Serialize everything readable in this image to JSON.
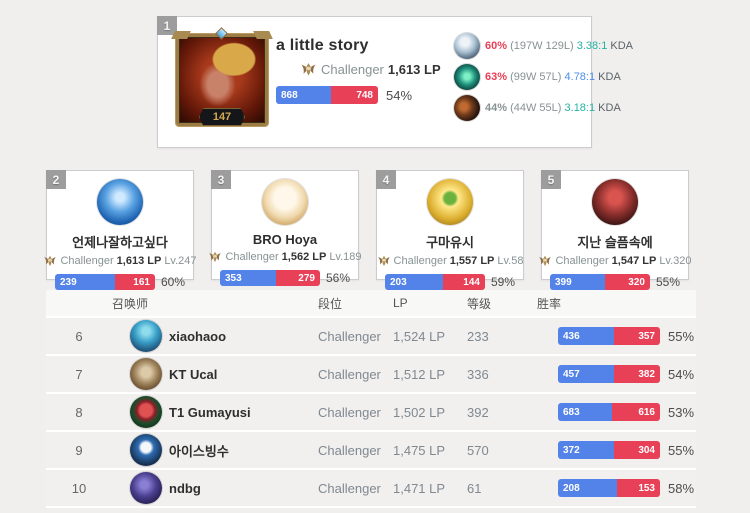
{
  "colors": {
    "win_blue": "#5383e8",
    "loss_red": "#e84057",
    "rate_red": "#e84057",
    "rate_gray": "#879292",
    "kda_teal": "#23b3a2",
    "kda_blue": "#4f8ee8"
  },
  "top_player": {
    "rank": "1",
    "name": "a little story",
    "tier": "Challenger",
    "lp": "1,613 LP",
    "level": "147",
    "wins": "868",
    "losses": "748",
    "win_pct": 53.7,
    "win_rate": "54%",
    "champions": [
      {
        "icon": "pale-champion-icon",
        "rate": "60%",
        "rate_color": "#e84057",
        "record": "(197W 129L)",
        "kda": "3.38:1",
        "kda_color": "#23b3a2",
        "kda_label": "KDA"
      },
      {
        "icon": "green-champion-icon",
        "rate": "63%",
        "rate_color": "#e84057",
        "record": "(99W 57L)",
        "kda": "4.78:1",
        "kda_color": "#4f8ee8",
        "kda_label": "KDA"
      },
      {
        "icon": "dark-champion-icon",
        "rate": "44%",
        "rate_color": "#879292",
        "record": "(44W 55L)",
        "kda": "3.18:1",
        "kda_color": "#23b3a2",
        "kda_label": "KDA"
      }
    ]
  },
  "cards": [
    {
      "rank": "2",
      "name": "언제나잘하고싶다",
      "tier": "Challenger",
      "lp": "1,613 LP",
      "level": "Lv.247",
      "wins": "239",
      "losses": "161",
      "win_pct": 59.8,
      "win_rate": "60%"
    },
    {
      "rank": "3",
      "name": "BRO Hoya",
      "tier": "Challenger",
      "lp": "1,562 LP",
      "level": "Lv.189",
      "wins": "353",
      "losses": "279",
      "win_pct": 55.9,
      "win_rate": "56%"
    },
    {
      "rank": "4",
      "name": "구마유시",
      "tier": "Challenger",
      "lp": "1,557 LP",
      "level": "Lv.58",
      "wins": "203",
      "losses": "144",
      "win_pct": 58.5,
      "win_rate": "59%"
    },
    {
      "rank": "5",
      "name": "지난 슬픔속에",
      "tier": "Challenger",
      "lp": "1,547 LP",
      "level": "Lv.320",
      "wins": "399",
      "losses": "320",
      "win_pct": 55.5,
      "win_rate": "55%"
    }
  ],
  "table": {
    "headers": {
      "summoner": "召唤师",
      "tier": "段位",
      "lp": "LP",
      "level": "等级",
      "win_rate": "胜率"
    },
    "rows": [
      {
        "rank": "6",
        "name": "xiaohaoo",
        "tier": "Challenger",
        "lp": "1,524 LP",
        "level": "233",
        "wins": "436",
        "losses": "357",
        "win_pct": 55.0,
        "win_rate": "55%"
      },
      {
        "rank": "7",
        "name": "KT Ucal",
        "tier": "Challenger",
        "lp": "1,512 LP",
        "level": "336",
        "wins": "457",
        "losses": "382",
        "win_pct": 54.5,
        "win_rate": "54%"
      },
      {
        "rank": "8",
        "name": "T1 Gumayusi",
        "tier": "Challenger",
        "lp": "1,502 LP",
        "level": "392",
        "wins": "683",
        "losses": "616",
        "win_pct": 52.6,
        "win_rate": "53%"
      },
      {
        "rank": "9",
        "name": "아이스빙수",
        "tier": "Challenger",
        "lp": "1,475 LP",
        "level": "570",
        "wins": "372",
        "losses": "304",
        "win_pct": 55.0,
        "win_rate": "55%"
      },
      {
        "rank": "10",
        "name": "ndbg",
        "tier": "Challenger",
        "lp": "1,471 LP",
        "level": "61",
        "wins": "208",
        "losses": "153",
        "win_pct": 57.6,
        "win_rate": "58%"
      }
    ]
  }
}
